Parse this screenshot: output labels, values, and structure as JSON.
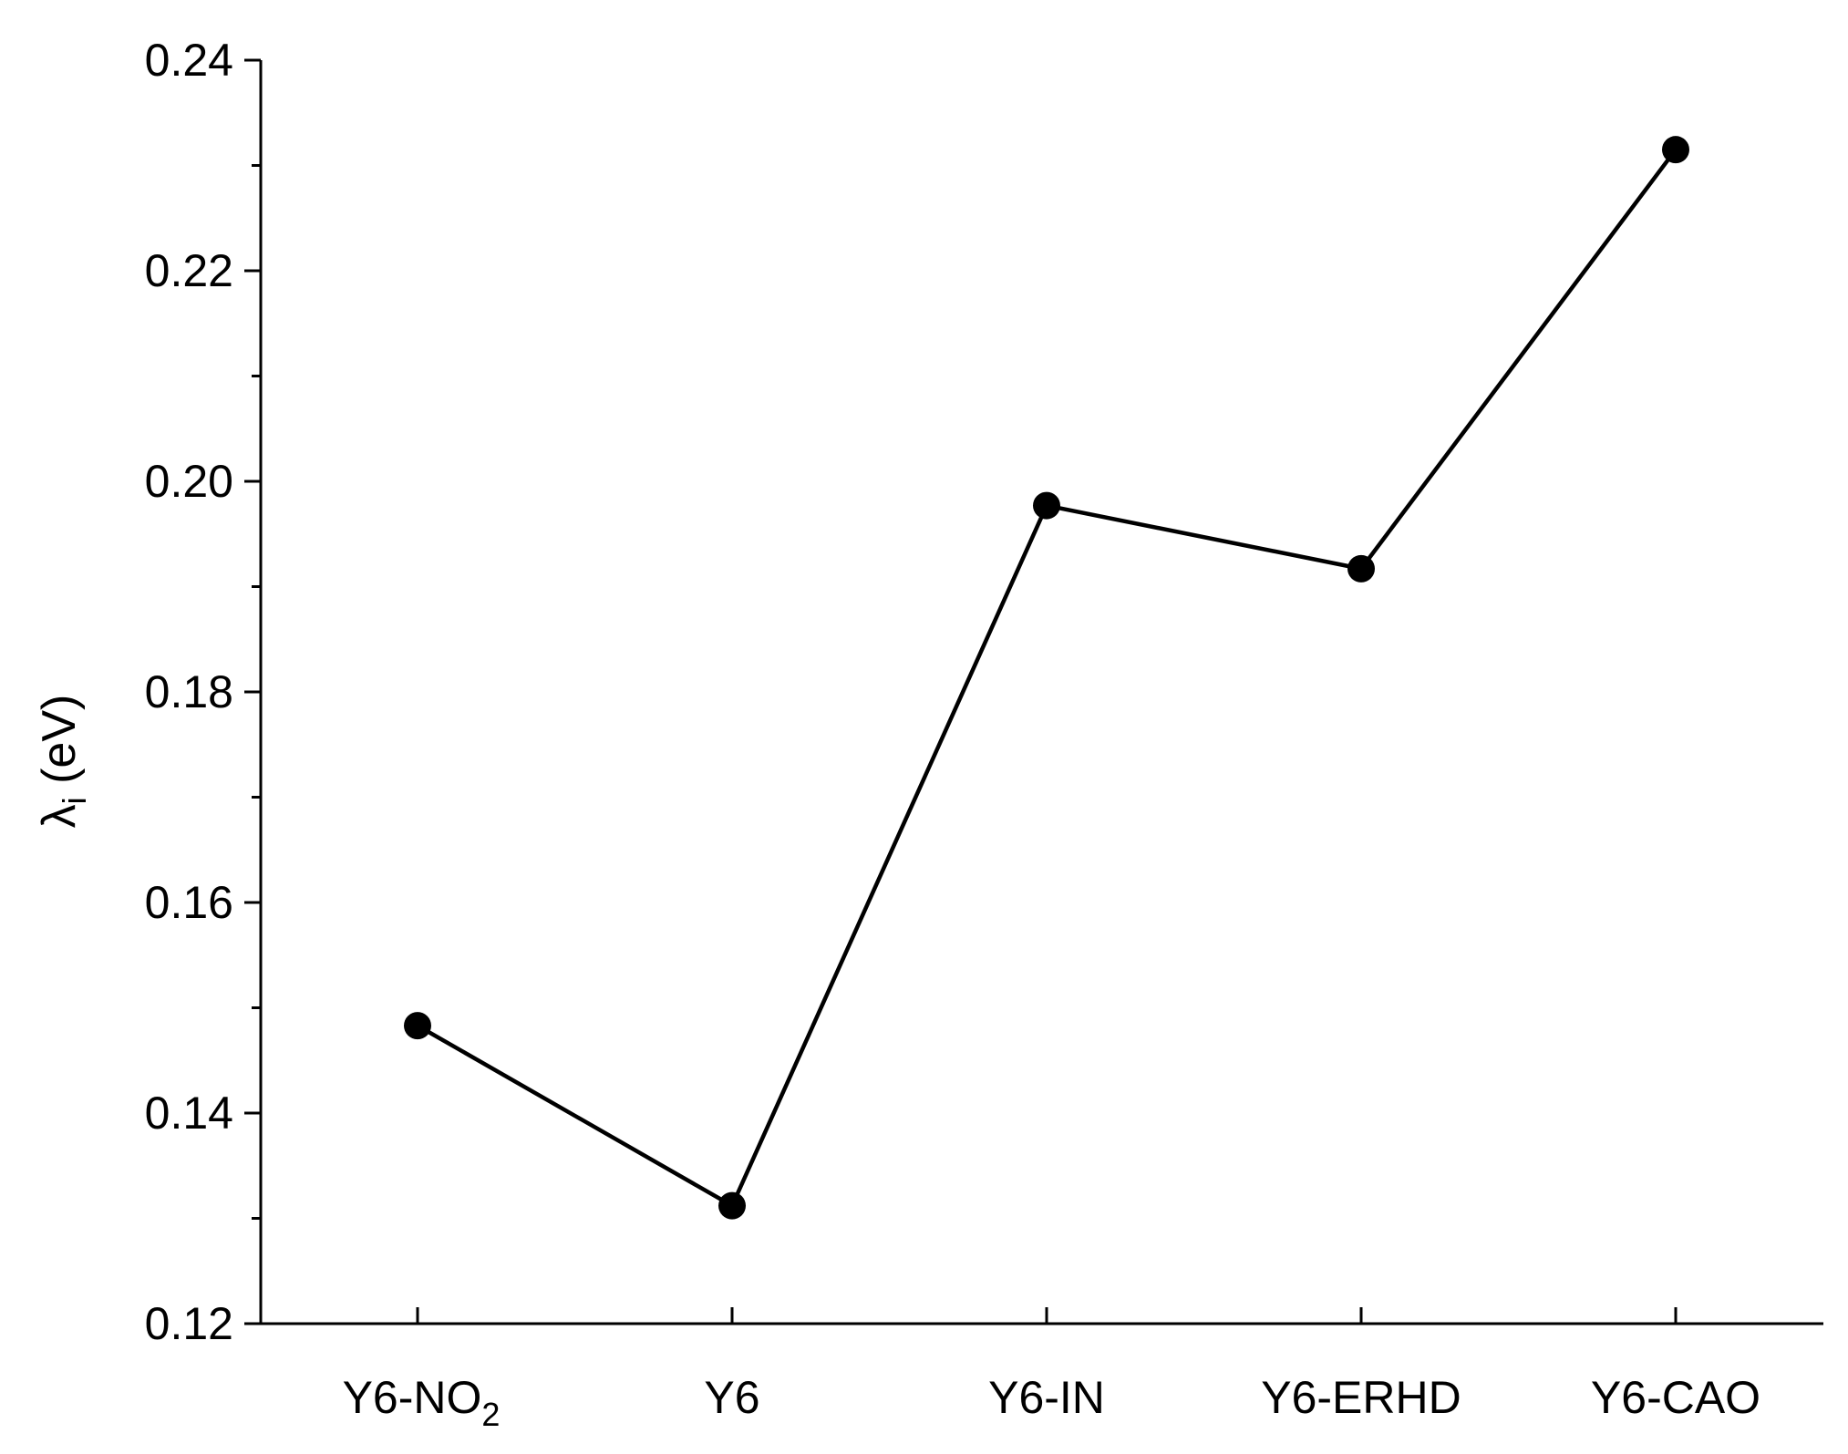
{
  "chart_data": {
    "type": "line",
    "title": "",
    "xlabel": "",
    "ylabel": {
      "symbol": "λ",
      "subscript": "i",
      "unit": " (eV)"
    },
    "categories": [
      {
        "text": "Y6-NO",
        "sub": "2"
      },
      {
        "text": "Y6",
        "sub": ""
      },
      {
        "text": "Y6-IN",
        "sub": ""
      },
      {
        "text": "Y6-ERHD",
        "sub": ""
      },
      {
        "text": "Y6-CAO",
        "sub": ""
      }
    ],
    "series": [
      {
        "values": [
          0.1483,
          0.1312,
          0.1977,
          0.1917,
          0.2315
        ]
      }
    ],
    "ylim": [
      0.12,
      0.24
    ],
    "yticks": [
      "0.12",
      "0.14",
      "0.16",
      "0.18",
      "0.20",
      "0.22",
      "0.24"
    ],
    "ytick_values": [
      0.12,
      0.14,
      0.16,
      0.18,
      0.2,
      0.22,
      0.24
    ],
    "grid": false,
    "legend": "none",
    "colors": {
      "line": "#000000",
      "marker": "#000000"
    }
  }
}
